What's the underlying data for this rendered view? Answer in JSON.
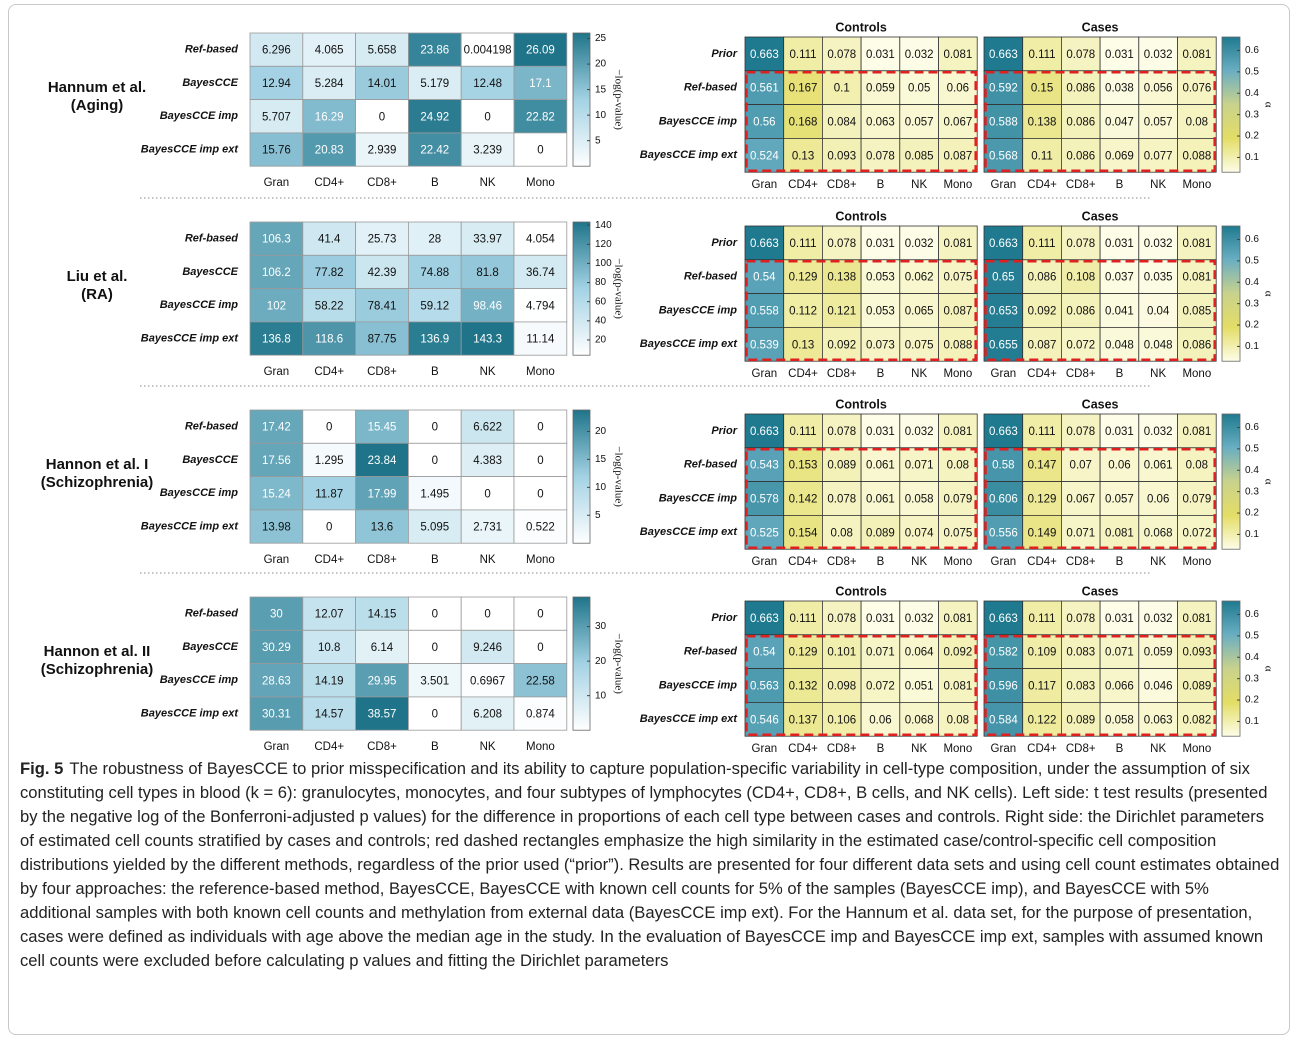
{
  "panels": [
    {
      "label": [
        "Hannum et al.",
        "(Aging)"
      ]
    },
    {
      "label": [
        "Liu et al.",
        "(RA)"
      ]
    },
    {
      "label": [
        "Hannon et al. I",
        "(Schizophrenia)"
      ]
    },
    {
      "label": [
        "Hannon et al. II",
        "(Schizophrenia)"
      ]
    }
  ],
  "caption": {
    "label": "Fig. 5",
    "text": "The robustness of BayesCCE to prior misspecification and its ability to capture population-specific variability in cell-type composition, under the assumption of six constituting cell types in blood (k = 6): granulocytes, monocytes, and four subtypes of lymphocytes (CD4+, CD8+, B cells, and NK cells). Left side: t test results (presented by the negative log of the Bonferroni-adjusted p values) for the difference in proportions of each cell type between cases and controls. Right side: the Dirichlet parameters of estimated cell counts stratified by cases and controls; red dashed rectangles emphasize the high similarity in the estimated case/control-specific cell composition distributions yielded by the different methods, regardless of the prior used (“prior”). Results are presented for four different data sets and using cell count estimates obtained by four approaches: the reference-based method, BayesCCE, BayesCCE with known cell counts for 5% of the samples (BayesCCE imp), and BayesCCE with 5% additional samples with both known cell counts and methylation from external data (BayesCCE imp ext). For the Hannum et al. data set, for the purpose of presentation, cases were defined as individuals with age above the median age in the study. In the evaluation of BayesCCE imp and BayesCCE imp ext, samples with assumed known cell counts were excluded before calculating p values and fitting the Dirichlet parameters"
  },
  "chart_data": [
    {
      "type": "heatmap",
      "x": [
        "Gran",
        "CD4+",
        "CD8+",
        "B",
        "NK",
        "Mono"
      ],
      "y": [
        "Ref-based",
        "BayesCCE",
        "BayesCCE imp",
        "BayesCCE imp ext"
      ],
      "values": [
        [
          6.296,
          4.065,
          5.658,
          23.86,
          0.004198,
          26.09
        ],
        [
          12.94,
          5.284,
          14.01,
          5.179,
          12.48,
          17.1
        ],
        [
          5.707,
          16.29,
          0,
          24.92,
          0,
          22.82
        ],
        [
          15.76,
          20.83,
          2.939,
          22.42,
          3.239,
          0
        ]
      ],
      "zlim": [
        0,
        26.09
      ],
      "zticks": [
        5,
        10,
        15,
        20,
        25
      ],
      "zlabel": "−log(p-value)",
      "colors": [
        "#ffffff",
        "#a3d2e4",
        "#1f7489"
      ]
    },
    {
      "type": "heatmap",
      "title": "Controls",
      "x": [
        "Gran",
        "CD4+",
        "CD8+",
        "B",
        "NK",
        "Mono"
      ],
      "y": [
        "Prior",
        "Ref-based",
        "BayesCCE imp",
        "BayesCCE imp ext"
      ],
      "values": [
        [
          0.663,
          0.111,
          0.078,
          0.031,
          0.032,
          0.081
        ],
        [
          0.561,
          0.167,
          0.1,
          0.059,
          0.05,
          0.06
        ],
        [
          0.56,
          0.168,
          0.084,
          0.063,
          0.057,
          0.067
        ],
        [
          0.524,
          0.13,
          0.093,
          0.078,
          0.085,
          0.087
        ]
      ],
      "zlim": [
        0.031,
        0.663
      ],
      "colors": [
        "#fdfde8",
        "#e3dd66",
        "#c9d28c",
        "#6aaec2",
        "#1f7a8f"
      ]
    },
    {
      "type": "heatmap",
      "title": "Cases",
      "x": [
        "Gran",
        "CD4+",
        "CD8+",
        "B",
        "NK",
        "Mono"
      ],
      "values": [
        [
          0.663,
          0.111,
          0.078,
          0.031,
          0.032,
          0.081
        ],
        [
          0.592,
          0.15,
          0.086,
          0.038,
          0.056,
          0.076
        ],
        [
          0.588,
          0.138,
          0.086,
          0.047,
          0.057,
          0.08
        ],
        [
          0.568,
          0.11,
          0.086,
          0.069,
          0.077,
          0.088
        ]
      ],
      "zlim": [
        0.031,
        0.663
      ],
      "zticks": [
        0.1,
        0.2,
        0.3,
        0.4,
        0.5,
        0.6
      ],
      "zlabel": "α",
      "colors": [
        "#fdfde8",
        "#e3dd66",
        "#c9d28c",
        "#6aaec2",
        "#1f7a8f"
      ]
    },
    {
      "type": "heatmap",
      "x": [
        "Gran",
        "CD4+",
        "CD8+",
        "B",
        "NK",
        "Mono"
      ],
      "y": [
        "Ref-based",
        "BayesCCE",
        "BayesCCE imp",
        "BayesCCE imp ext"
      ],
      "values": [
        [
          106.3,
          41.4,
          25.73,
          28,
          33.97,
          4.054
        ],
        [
          106.2,
          77.82,
          42.39,
          74.88,
          81.8,
          36.74
        ],
        [
          102,
          58.22,
          78.41,
          59.12,
          98.46,
          4.794
        ],
        [
          136.8,
          118.6,
          87.75,
          136.9,
          143.3,
          11.14
        ]
      ],
      "zlim": [
        4.054,
        143.3
      ],
      "zticks": [
        20,
        40,
        60,
        80,
        100,
        120,
        140
      ],
      "zlabel": "−log(p-value)",
      "colors": [
        "#ffffff",
        "#a3d2e4",
        "#1f7489"
      ]
    },
    {
      "type": "heatmap",
      "title": "Controls",
      "x": [
        "Gran",
        "CD4+",
        "CD8+",
        "B",
        "NK",
        "Mono"
      ],
      "y": [
        "Prior",
        "Ref-based",
        "BayesCCE imp",
        "BayesCCE imp ext"
      ],
      "values": [
        [
          0.663,
          0.111,
          0.078,
          0.031,
          0.032,
          0.081
        ],
        [
          0.54,
          0.129,
          0.138,
          0.053,
          0.062,
          0.075
        ],
        [
          0.558,
          0.112,
          0.121,
          0.053,
          0.065,
          0.087
        ],
        [
          0.539,
          0.13,
          0.092,
          0.073,
          0.075,
          0.088
        ]
      ],
      "zlim": [
        0.031,
        0.663
      ],
      "colors": [
        "#fdfde8",
        "#e3dd66",
        "#c9d28c",
        "#6aaec2",
        "#1f7a8f"
      ]
    },
    {
      "type": "heatmap",
      "title": "Cases",
      "x": [
        "Gran",
        "CD4+",
        "CD8+",
        "B",
        "NK",
        "Mono"
      ],
      "values": [
        [
          0.663,
          0.111,
          0.078,
          0.031,
          0.032,
          0.081
        ],
        [
          0.65,
          0.086,
          0.108,
          0.037,
          0.035,
          0.081
        ],
        [
          0.653,
          0.092,
          0.086,
          0.041,
          0.04,
          0.085
        ],
        [
          0.655,
          0.087,
          0.072,
          0.048,
          0.048,
          0.086
        ]
      ],
      "zlim": [
        0.031,
        0.663
      ],
      "zticks": [
        0.1,
        0.2,
        0.3,
        0.4,
        0.5,
        0.6
      ],
      "zlabel": "α",
      "colors": [
        "#fdfde8",
        "#e3dd66",
        "#c9d28c",
        "#6aaec2",
        "#1f7a8f"
      ]
    },
    {
      "type": "heatmap",
      "x": [
        "Gran",
        "CD4+",
        "CD8+",
        "B",
        "NK",
        "Mono"
      ],
      "y": [
        "Ref-based",
        "BayesCCE",
        "BayesCCE imp",
        "BayesCCE imp ext"
      ],
      "values": [
        [
          17.42,
          0,
          15.45,
          0,
          6.622,
          0
        ],
        [
          17.56,
          1.295,
          23.84,
          0,
          4.383,
          0
        ],
        [
          15.24,
          11.87,
          17.99,
          1.495,
          0,
          0
        ],
        [
          13.98,
          0,
          13.6,
          5.095,
          2.731,
          0.522
        ]
      ],
      "zlim": [
        0,
        23.84
      ],
      "zticks": [
        5,
        10,
        15,
        20
      ],
      "zlabel": "−log(p-value)",
      "colors": [
        "#ffffff",
        "#a3d2e4",
        "#1f7489"
      ]
    },
    {
      "type": "heatmap",
      "title": "Controls",
      "x": [
        "Gran",
        "CD4+",
        "CD8+",
        "B",
        "NK",
        "Mono"
      ],
      "y": [
        "Prior",
        "Ref-based",
        "BayesCCE imp",
        "BayesCCE imp ext"
      ],
      "values": [
        [
          0.663,
          0.111,
          0.078,
          0.031,
          0.032,
          0.081
        ],
        [
          0.543,
          0.153,
          0.089,
          0.061,
          0.071,
          0.08
        ],
        [
          0.578,
          0.142,
          0.078,
          0.061,
          0.058,
          0.079
        ],
        [
          0.525,
          0.154,
          0.08,
          0.089,
          0.074,
          0.075
        ]
      ],
      "zlim": [
        0.031,
        0.663
      ],
      "colors": [
        "#fdfde8",
        "#e3dd66",
        "#c9d28c",
        "#6aaec2",
        "#1f7a8f"
      ]
    },
    {
      "type": "heatmap",
      "title": "Cases",
      "x": [
        "Gran",
        "CD4+",
        "CD8+",
        "B",
        "NK",
        "Mono"
      ],
      "values": [
        [
          0.663,
          0.111,
          0.078,
          0.031,
          0.032,
          0.081
        ],
        [
          0.58,
          0.147,
          0.07,
          0.06,
          0.061,
          0.08
        ],
        [
          0.606,
          0.129,
          0.067,
          0.057,
          0.06,
          0.079
        ],
        [
          0.556,
          0.149,
          0.071,
          0.081,
          0.068,
          0.072
        ]
      ],
      "zlim": [
        0.031,
        0.663
      ],
      "zticks": [
        0.1,
        0.2,
        0.3,
        0.4,
        0.5,
        0.6
      ],
      "zlabel": "α",
      "colors": [
        "#fdfde8",
        "#e3dd66",
        "#c9d28c",
        "#6aaec2",
        "#1f7a8f"
      ]
    },
    {
      "type": "heatmap",
      "x": [
        "Gran",
        "CD4+",
        "CD8+",
        "B",
        "NK",
        "Mono"
      ],
      "y": [
        "Ref-based",
        "BayesCCE",
        "BayesCCE imp",
        "BayesCCE imp ext"
      ],
      "values": [
        [
          30,
          12.07,
          14.15,
          0,
          0,
          0
        ],
        [
          30.29,
          10.8,
          6.14,
          0,
          9.246,
          0
        ],
        [
          28.63,
          14.19,
          29.95,
          3.501,
          0.6967,
          22.58
        ],
        [
          30.31,
          14.57,
          38.57,
          0,
          6.208,
          0.874
        ]
      ],
      "zlim": [
        0,
        38.57
      ],
      "zticks": [
        10,
        20,
        30
      ],
      "zlabel": "−log(p-value)",
      "colors": [
        "#ffffff",
        "#a3d2e4",
        "#1f7489"
      ]
    },
    {
      "type": "heatmap",
      "title": "Controls",
      "x": [
        "Gran",
        "CD4+",
        "CD8+",
        "B",
        "NK",
        "Mono"
      ],
      "y": [
        "Prior",
        "Ref-based",
        "BayesCCE imp",
        "BayesCCE imp ext"
      ],
      "values": [
        [
          0.663,
          0.111,
          0.078,
          0.031,
          0.032,
          0.081
        ],
        [
          0.54,
          0.129,
          0.101,
          0.071,
          0.064,
          0.092
        ],
        [
          0.563,
          0.132,
          0.098,
          0.072,
          0.051,
          0.081
        ],
        [
          0.546,
          0.137,
          0.106,
          0.06,
          0.068,
          0.08
        ]
      ],
      "zlim": [
        0.031,
        0.663
      ],
      "colors": [
        "#fdfde8",
        "#e3dd66",
        "#c9d28c",
        "#6aaec2",
        "#1f7a8f"
      ]
    },
    {
      "type": "heatmap",
      "title": "Cases",
      "x": [
        "Gran",
        "CD4+",
        "CD8+",
        "B",
        "NK",
        "Mono"
      ],
      "values": [
        [
          0.663,
          0.111,
          0.078,
          0.031,
          0.032,
          0.081
        ],
        [
          0.582,
          0.109,
          0.083,
          0.071,
          0.059,
          0.093
        ],
        [
          0.596,
          0.117,
          0.083,
          0.066,
          0.046,
          0.089
        ],
        [
          0.584,
          0.122,
          0.089,
          0.058,
          0.063,
          0.082
        ]
      ],
      "zlim": [
        0.031,
        0.663
      ],
      "zticks": [
        0.1,
        0.2,
        0.3,
        0.4,
        0.5,
        0.6
      ],
      "zlabel": "α",
      "colors": [
        "#fdfde8",
        "#e3dd66",
        "#c9d28c",
        "#6aaec2",
        "#1f7a8f"
      ]
    }
  ]
}
